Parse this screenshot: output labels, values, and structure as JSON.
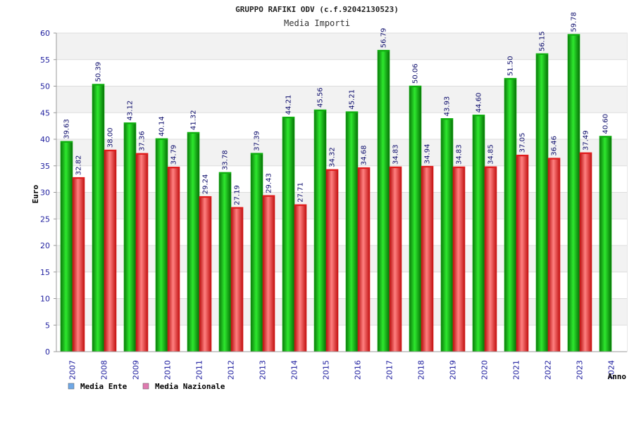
{
  "chart_data": {
    "type": "bar",
    "title": "GRUPPO RAFIKI ODV (c.f.92042130523)",
    "subtitle": "Media Importi",
    "xlabel": "Anno",
    "ylabel": "Euro",
    "ylim": [
      0,
      60
    ],
    "ytick_labels": [
      "0",
      "5",
      "10",
      "15",
      "20",
      "25",
      "30",
      "35",
      "40",
      "45",
      "50",
      "55",
      "60"
    ],
    "grid": true,
    "legend_position": "bottom-left",
    "categories": [
      "2007",
      "2008",
      "2009",
      "2010",
      "2011",
      "2012",
      "2013",
      "2014",
      "2015",
      "2016",
      "2017",
      "2018",
      "2019",
      "2020",
      "2021",
      "2022",
      "2023",
      "2024"
    ],
    "series": [
      {
        "name": "Media Ente",
        "legend_color": "#6fa8e6",
        "bar_color": "#0fae0f",
        "values": [
          39.63,
          50.39,
          43.12,
          40.14,
          41.32,
          33.78,
          37.39,
          44.21,
          45.56,
          45.21,
          56.79,
          50.06,
          43.93,
          44.6,
          51.5,
          56.15,
          59.78,
          40.6
        ],
        "labels": [
          "39.63",
          "50.39",
          "43.12",
          "40.14",
          "41.32",
          "33.78",
          "37.39",
          "44.21",
          "45.56",
          "45.21",
          "56.79",
          "50.06",
          "43.93",
          "44.60",
          "51.50",
          "56.15",
          "59.78",
          "40.60"
        ]
      },
      {
        "name": "Media Nazionale",
        "legend_color": "#e07ab0",
        "bar_color": "#e01c1c",
        "values": [
          32.82,
          38.0,
          37.36,
          34.79,
          29.24,
          27.19,
          29.43,
          27.71,
          34.32,
          34.68,
          34.83,
          34.94,
          34.83,
          34.85,
          37.05,
          36.46,
          37.49,
          null
        ],
        "labels": [
          "32.82",
          "38.00",
          "37.36",
          "34.79",
          "29.24",
          "27.19",
          "29.43",
          "27.71",
          "34.32",
          "34.68",
          "34.83",
          "34.94",
          "34.83",
          "34.85",
          "37.05",
          "36.46",
          "37.49",
          ""
        ]
      }
    ]
  }
}
